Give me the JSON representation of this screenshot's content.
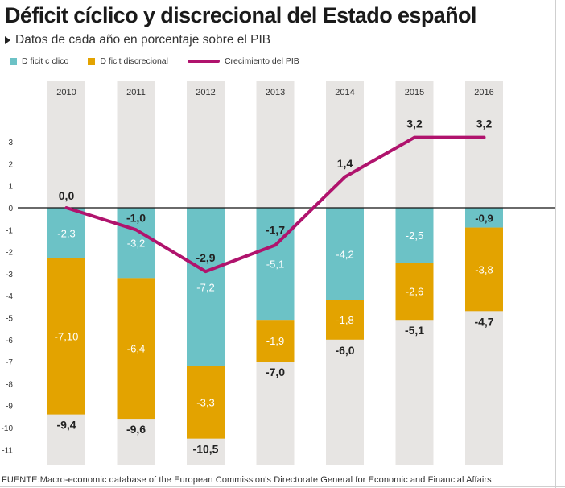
{
  "title": "Déficit cíclico y discrecional del Estado español",
  "subtitle": "Datos de cada año en porcentaje sobre el PIB",
  "legend": {
    "cyclical": "D ficit c clico",
    "discretionary": "D ficit discrecional",
    "growth": "Crecimiento del PIB"
  },
  "source": "FUENTE:Macro-economic database of the European Commission's Directorate General for Economic and Financial Affairs",
  "colors": {
    "cyclical": "#6cc2c6",
    "discretionary": "#e3a300",
    "growth": "#b0136d",
    "column_bg": "#e7e5e3",
    "zero_line": "#111111"
  },
  "chart_data": {
    "type": "bar",
    "stacked": true,
    "categories": [
      "2010",
      "2011",
      "2012",
      "2013",
      "2014",
      "2015",
      "2016"
    ],
    "ylim": [
      -11,
      3
    ],
    "yticks": [
      "3",
      "2",
      "1",
      "0",
      "-1",
      "-2",
      "-3",
      "-4",
      "-5",
      "-6",
      "-7",
      "-8",
      "-9",
      "-10",
      "-11"
    ],
    "series": [
      {
        "name": "D ficit c clico",
        "values": [
          -2.3,
          -3.2,
          -7.2,
          -5.1,
          -4.2,
          -2.5,
          -0.9
        ],
        "labels": [
          "-2,3",
          "-3,2",
          "-7,2",
          "-5,1",
          "-4,2",
          "-2,5",
          ""
        ]
      },
      {
        "name": "D ficit discrecional",
        "values": [
          -7.1,
          -6.4,
          -3.3,
          -1.9,
          -1.8,
          -2.6,
          -3.8
        ],
        "labels": [
          "-7,10",
          "-6,4",
          "-3,3",
          "-1,9",
          "-1,8",
          "-2,6",
          "-3,8"
        ]
      }
    ],
    "totals": [
      "-9,4",
      "-9,6",
      "-10,5",
      "-7,0",
      "-6,0",
      "-5,1",
      "-4,7"
    ],
    "line": {
      "name": "Crecimiento del PIB",
      "values": [
        0.0,
        -1.0,
        -2.9,
        -1.7,
        1.4,
        3.2,
        3.2
      ],
      "labels": [
        "0,0",
        "-1,0",
        "-2,9",
        "-1,7",
        "1,4",
        "3,2",
        "3,2"
      ]
    },
    "extra_labels": [
      "-0,9"
    ]
  }
}
